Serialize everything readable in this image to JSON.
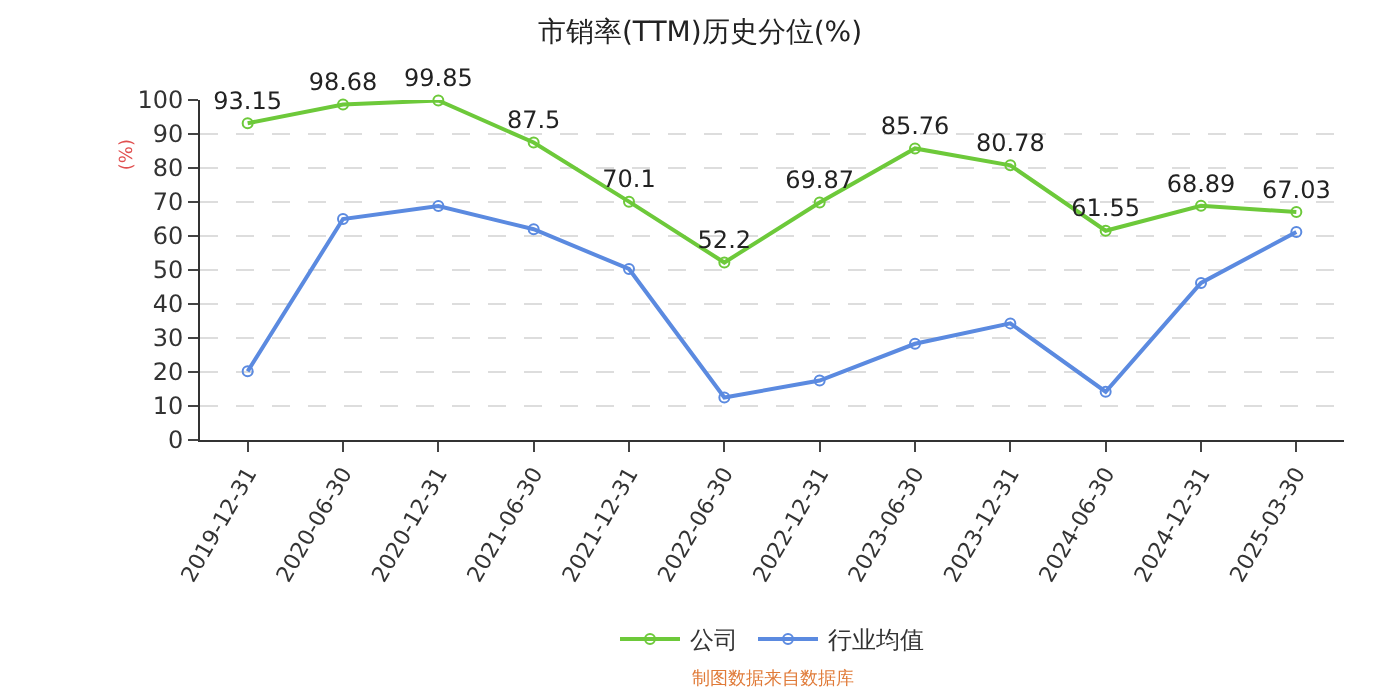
{
  "chart_data": {
    "type": "line",
    "title": "市销率(TTM)历史分位(%)",
    "ylabel": "(%)",
    "categories": [
      "2019-12-31",
      "2020-06-30",
      "2020-12-31",
      "2021-06-30",
      "2021-12-31",
      "2022-06-30",
      "2022-12-31",
      "2023-06-30",
      "2023-12-31",
      "2024-06-30",
      "2024-12-31",
      "2025-03-30"
    ],
    "series": [
      {
        "name": "公司",
        "color": "#6dc93a",
        "values": [
          93.15,
          98.68,
          99.85,
          87.5,
          70.1,
          52.2,
          69.87,
          85.76,
          80.78,
          61.55,
          68.89,
          67.03
        ],
        "value_labels": [
          "93.15",
          "98.68",
          "99.85",
          "87.5",
          "70.1",
          "52.2",
          "69.87",
          "85.76",
          "80.78",
          "61.55",
          "68.89",
          "67.03"
        ]
      },
      {
        "name": "行业均值",
        "color": "#5b8ae0",
        "values": [
          20.2,
          65,
          68.8,
          62,
          50.3,
          12.5,
          17.5,
          28.3,
          34.3,
          14.2,
          46.2,
          61.2
        ]
      }
    ],
    "ylim": [
      0,
      100
    ],
    "yticks": [
      0,
      10,
      20,
      30,
      40,
      50,
      60,
      70,
      80,
      90,
      100
    ],
    "grid": "y",
    "legend": "bottom",
    "marker": "circle",
    "line_style": "solid",
    "annotations": [
      "制图数据来自数据库"
    ]
  }
}
